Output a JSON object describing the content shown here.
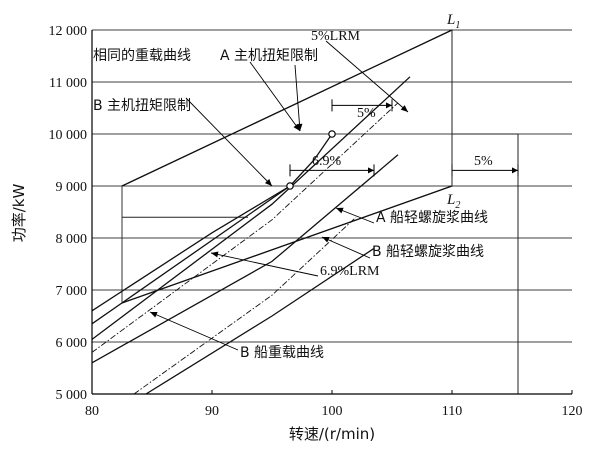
{
  "chart_data": {
    "type": "line",
    "xlabel": "转速/(r/min)",
    "ylabel": "功率/kW",
    "xlim": [
      80,
      120
    ],
    "ylim": [
      5000,
      12000
    ],
    "x_ticks": [
      "80",
      "90",
      "100",
      "110",
      "120"
    ],
    "y_ticks": [
      "5 000",
      "6 000",
      "7 000",
      "8 000",
      "9 000",
      "10 000",
      "11 000",
      "12 000"
    ],
    "grid": "horizontal",
    "series": [
      {
        "name": "L1",
        "style": "solid",
        "points": [
          [
            82.5,
            9000
          ],
          [
            110,
            12000
          ]
        ]
      },
      {
        "name": "L2",
        "style": "solid",
        "points": [
          [
            82.5,
            6750
          ],
          [
            110,
            9000
          ]
        ]
      },
      {
        "name": "相同的重载曲线",
        "style": "solid",
        "points": [
          [
            80,
            6600
          ],
          [
            90,
            8100
          ],
          [
            96.5,
            9000
          ]
        ]
      },
      {
        "name": "A 主机扭矩限制",
        "style": "solid",
        "points": [
          [
            96.5,
            9000
          ],
          [
            98.5,
            9500
          ],
          [
            100,
            10000
          ]
        ]
      },
      {
        "name": "B 主机扭矩限制",
        "style": "solid",
        "points": [
          [
            80,
            6350
          ],
          [
            96.5,
            9000
          ]
        ]
      },
      {
        "name": "A 船轻螺旋浆曲线",
        "style": "solid",
        "points": [
          [
            80,
            6050
          ],
          [
            95,
            8650
          ],
          [
            106.5,
            11100
          ]
        ]
      },
      {
        "name": "A 船轻螺旋浆曲线 (5%LRM)",
        "style": "dashdot",
        "points": [
          [
            80,
            5800
          ],
          [
            95,
            8350
          ],
          [
            105.5,
            10600
          ]
        ]
      },
      {
        "name": "B 船轻螺旋浆曲线",
        "style": "solid",
        "points": [
          [
            80,
            5600
          ],
          [
            95,
            7550
          ],
          [
            105.5,
            9600
          ]
        ]
      },
      {
        "name": "B 船轻螺旋浆曲线 (6.9%LRM)",
        "style": "dashdot",
        "points": [
          [
            83.5,
            5000
          ],
          [
            95,
            6900
          ],
          [
            102,
            8400
          ]
        ]
      },
      {
        "name": "B 船重载曲线",
        "style": "solid",
        "points": [
          [
            84.5,
            5000
          ],
          [
            95,
            6500
          ],
          [
            103.5,
            7800
          ]
        ]
      }
    ],
    "boundary": [
      [
        82.5,
        8400
      ],
      [
        93,
        8400
      ]
    ],
    "region": [
      [
        82.5,
        9000
      ],
      [
        82.5,
        6750
      ],
      [
        110,
        9000
      ],
      [
        110,
        12000
      ]
    ],
    "limit_lines": [
      {
        "style": "solid",
        "points": [
          [
            110,
            12000
          ],
          [
            110,
            9000
          ]
        ]
      },
      {
        "style": "solid",
        "points": [
          [
            110,
            10000
          ],
          [
            115.5,
            10000
          ],
          [
            115.5,
            5000
          ]
        ]
      }
    ],
    "points": [
      {
        "x": 100,
        "y": 10000
      },
      {
        "x": 96.5,
        "y": 9000
      }
    ],
    "annotations": {
      "l1": "L",
      "l1_sub": "1",
      "l2": "L",
      "l2_sub": "2",
      "lrm5": "5%LRM",
      "same_heavy": "相同的重载曲线",
      "a_torque": "A 主机扭矩限制",
      "b_torque": "B 主机扭矩限制",
      "pct5_top": "5%",
      "pct69": "6.9%",
      "pct5_right": "5%",
      "a_light": "A 船轻螺旋浆曲线",
      "b_light": "B 船轻螺旋浆曲线",
      "lrm69": "6.9%LRM",
      "b_heavy": "B 船重载曲线"
    },
    "spans": [
      {
        "label": "5%",
        "from": 100,
        "to": 105,
        "y": 10550
      },
      {
        "label": "6.9%",
        "from": 96.5,
        "to": 103.5,
        "y": 9300
      },
      {
        "label": "5%",
        "from": 110,
        "to": 115.5,
        "y": 9300
      }
    ]
  }
}
